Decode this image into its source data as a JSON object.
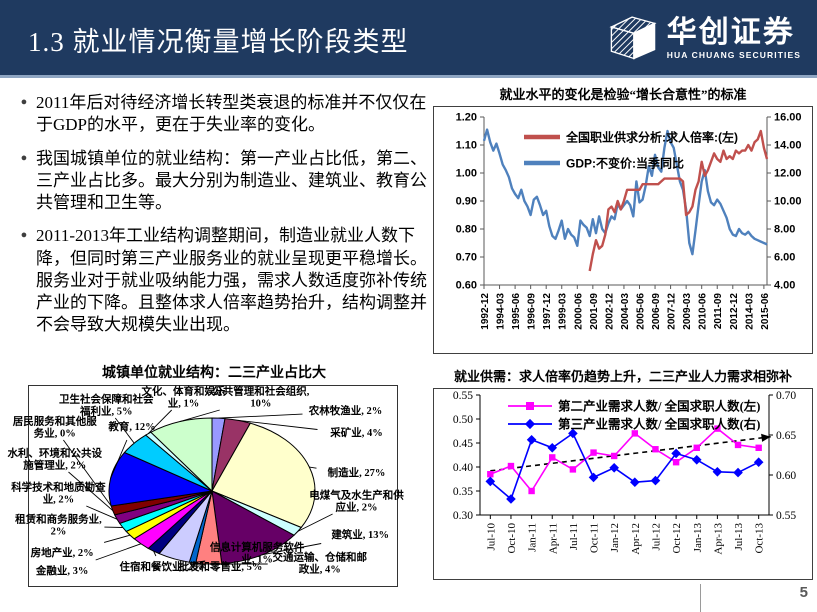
{
  "header": {
    "title": "1.3 就业情况衡量增长阶段类型",
    "logo": {
      "name": "华创证券",
      "subtitle": "HUA CHUANG SECURITIES"
    }
  },
  "bullets": [
    "2011年后对待经济增长转型类衰退的标准并不仅仅在于GDP的水平，更在于失业率的变化。",
    "我国城镇单位的就业结构：第一产业占比低，第二、三产业占比多。最大分别为制造业、建筑业、教育公共管理和卫生等。",
    "2011-2013年工业结构调整期间，制造业就业人数下降，但同时第三产业服务业的就业呈现更平稳增长。服务业对于就业吸纳能力强，需求人数适度弥补传统产业的下降。且整体求人倍率趋势抬升，结构调整并不会导致大规模失业出现。"
  ],
  "page_number": "5",
  "colors": {
    "header_bg": "#1F3A60",
    "header_rule": "#8EA5C2",
    "chart1_red": "#C0504D",
    "chart1_blue": "#4F81BD",
    "chart2_magenta": "#FF00FF",
    "chart2_blue": "#0000FF",
    "trendline": "#000000"
  },
  "chart_data": [
    {
      "id": "employment-gdp",
      "type": "line",
      "title": "就业水平的变化是检验“增长合意性”的标准",
      "legend_position": "top-left-inside",
      "grid": false,
      "left_axis": {
        "min": 0.6,
        "max": 1.2,
        "ticks": [
          "1.20",
          "1.10",
          "1.00",
          "0.90",
          "0.80",
          "0.70",
          "0.60"
        ]
      },
      "right_axis": {
        "min": 4.0,
        "max": 16.0,
        "ticks": [
          "16.00",
          "14.00",
          "12.00",
          "10.00",
          "8.00",
          "6.00",
          "4.00"
        ]
      },
      "x_tick_labels": [
        "1992-12",
        "1994-03",
        "1995-06",
        "1996-09",
        "1997-12",
        "1999-03",
        "2000-06",
        "2001-09",
        "2002-12",
        "2004-03",
        "2005-06",
        "2006-09",
        "2007-12",
        "2009-03",
        "2010-06",
        "2011-09",
        "2012-12",
        "2014-03",
        "2015-06"
      ],
      "x_tick_step": 5,
      "timeline_points": 92,
      "series": [
        {
          "name": "全国职业供求分析:求人倍率:(左)",
          "axis": "left",
          "color": "#C0504D",
          "start_index": 34,
          "values": [
            0.65,
            0.71,
            0.76,
            0.73,
            0.74,
            0.78,
            0.87,
            0.88,
            0.86,
            0.9,
            0.87,
            0.9,
            0.94,
            0.94,
            0.94,
            0.94,
            0.94,
            0.96,
            0.96,
            0.96,
            0.96,
            0.96,
            0.96,
            0.97,
            0.98,
            0.98,
            0.98,
            0.98,
            0.98,
            0.98,
            0.97,
            0.85,
            0.86,
            0.88,
            0.94,
            0.97,
            1.04,
            0.99,
            1.01,
            1.04,
            1.07,
            1.05,
            1.04,
            1.08,
            1.05,
            1.06,
            1.05,
            1.08,
            1.07,
            1.08,
            1.08,
            1.1,
            1.08,
            1.11,
            1.12,
            1.15,
            1.09,
            1.05
          ]
        },
        {
          "name": "GDP:不变价:当季同比",
          "axis": "right",
          "color": "#4F81BD",
          "start_index": 0,
          "values": [
            14.3,
            15.1,
            14.2,
            13.6,
            14.1,
            13.4,
            12.6,
            12.2,
            11.7,
            10.9,
            10.5,
            10.2,
            10.8,
            10.0,
            9.6,
            9.0,
            10.1,
            10.3,
            9.7,
            9.0,
            9.3,
            8.2,
            7.5,
            7.3,
            7.9,
            8.6,
            7.3,
            8.0,
            7.6,
            7.4,
            6.8,
            8.6,
            8.3,
            8.1,
            7.5,
            8.7,
            7.7,
            8.9,
            8.0,
            7.7,
            8.4,
            8.9,
            8.7,
            9.8,
            9.4,
            9.7,
            10.0,
            9.7,
            8.9,
            11.4,
            9.9,
            10.1,
            11.1,
            12.5,
            11.8,
            13.3,
            12.4,
            12.1,
            13.8,
            15.0,
            14.2,
            13.8,
            12.6,
            11.4,
            10.8,
            9.4,
            7.0,
            6.2,
            7.9,
            9.7,
            11.4,
            12.2,
            10.7,
            9.9,
            9.7,
            10.1,
            9.8,
            9.3,
            8.8,
            8.0,
            7.6,
            7.5,
            8.0,
            7.7,
            7.6,
            7.8,
            7.5,
            7.3,
            7.2,
            7.1,
            7.0,
            6.9
          ]
        }
      ]
    },
    {
      "id": "urban-employment-structure",
      "type": "pie",
      "title": "城镇单位就业结构：二三产业占比大",
      "slices": [
        {
          "label": "农林牧渔业",
          "pct": "2%",
          "value": 2,
          "color": "#9999FF"
        },
        {
          "label": "采矿业",
          "pct": "4%",
          "value": 4,
          "color": "#993366"
        },
        {
          "label": "制造业",
          "pct": "27%",
          "value": 27,
          "color": "#FFFFCC"
        },
        {
          "label": "电煤气及水生产和供应业",
          "pct": "2%",
          "value": 2,
          "color": "#CCFFFF"
        },
        {
          "label": "建筑业",
          "pct": "13%",
          "value": 13,
          "color": "#660066"
        },
        {
          "label": "交通运输、仓储和邮政业",
          "pct": "4%",
          "value": 4,
          "color": "#FF8080"
        },
        {
          "label": "信息计算机服务软件业",
          "pct": "1%",
          "value": 1,
          "color": "#0066CC"
        },
        {
          "label": "批发和零售业",
          "pct": "5%",
          "value": 5,
          "color": "#CCCCFF"
        },
        {
          "label": "住宿和餐饮业",
          "pct": "2%",
          "value": 2,
          "color": "#000080"
        },
        {
          "label": "金融业",
          "pct": "3%",
          "value": 3,
          "color": "#FF00FF"
        },
        {
          "label": "房地产业",
          "pct": "2%",
          "value": 2,
          "color": "#FFFF00"
        },
        {
          "label": "租赁和商务服务业",
          "pct": "2%",
          "value": 2,
          "color": "#00FFFF"
        },
        {
          "label": "科学技术和地质勘查业",
          "pct": "2%",
          "value": 2,
          "color": "#800080"
        },
        {
          "label": "水利、环境和公共设施管理业",
          "pct": "2%",
          "value": 2,
          "color": "#800000"
        },
        {
          "label": "居民服务和其他服务业",
          "pct": "0%",
          "value": 0,
          "color": "#008080"
        },
        {
          "label": "教育",
          "pct": "12%",
          "value": 12,
          "color": "#0000FF"
        },
        {
          "label": "卫生社会保障和社会福利业",
          "pct": "5%",
          "value": 5,
          "color": "#00CCFF"
        },
        {
          "label": "文化、体育和娱乐业",
          "pct": "1%",
          "value": 1,
          "color": "#CCFFFF"
        },
        {
          "label": "公共管理和社会组织",
          "pct": "10%",
          "value": 10,
          "color": "#CCFFCC"
        }
      ]
    },
    {
      "id": "labor-supply-demand",
      "type": "line",
      "title": "就业供需：求人倍率仍趋势上升，二三产业人力需求相弥补",
      "grid": false,
      "left_axis": {
        "min": 0.3,
        "max": 0.55,
        "ticks": [
          "0.55",
          "0.50",
          "0.45",
          "0.40",
          "0.35",
          "0.30"
        ]
      },
      "right_axis": {
        "min": 0.55,
        "max": 0.7,
        "ticks": [
          "0.70",
          "0.65",
          "0.60",
          "0.55"
        ]
      },
      "x_labels": [
        "Jul-10",
        "Oct-10",
        "Jan-11",
        "Apr-11",
        "Jul-11",
        "Oct-11",
        "Jan-12",
        "Apr-12",
        "Jul-12",
        "Oct-12",
        "Jan-13",
        "Apr-13",
        "Jul-13",
        "Oct-13"
      ],
      "series": [
        {
          "name": "第二产业需求人数/ 全国求职人数(左)",
          "axis": "left",
          "color": "#FF00FF",
          "marker": "square",
          "values": [
            0.385,
            0.402,
            0.35,
            0.42,
            0.395,
            0.43,
            0.423,
            0.47,
            0.437,
            0.41,
            0.44,
            0.48,
            0.446,
            0.44
          ]
        },
        {
          "name": "第三产业需求人数/ 全国求职人数(右)",
          "axis": "right",
          "color": "#0000FF",
          "marker": "diamond",
          "values": [
            0.592,
            0.57,
            0.644,
            0.634,
            0.652,
            0.597,
            0.609,
            0.591,
            0.593,
            0.627,
            0.619,
            0.604,
            0.603,
            0.616
          ]
        }
      ],
      "trendline": {
        "axis": "left",
        "start_value": 0.392,
        "end_value": 0.463,
        "style": "dashed",
        "color": "#000000"
      }
    }
  ]
}
